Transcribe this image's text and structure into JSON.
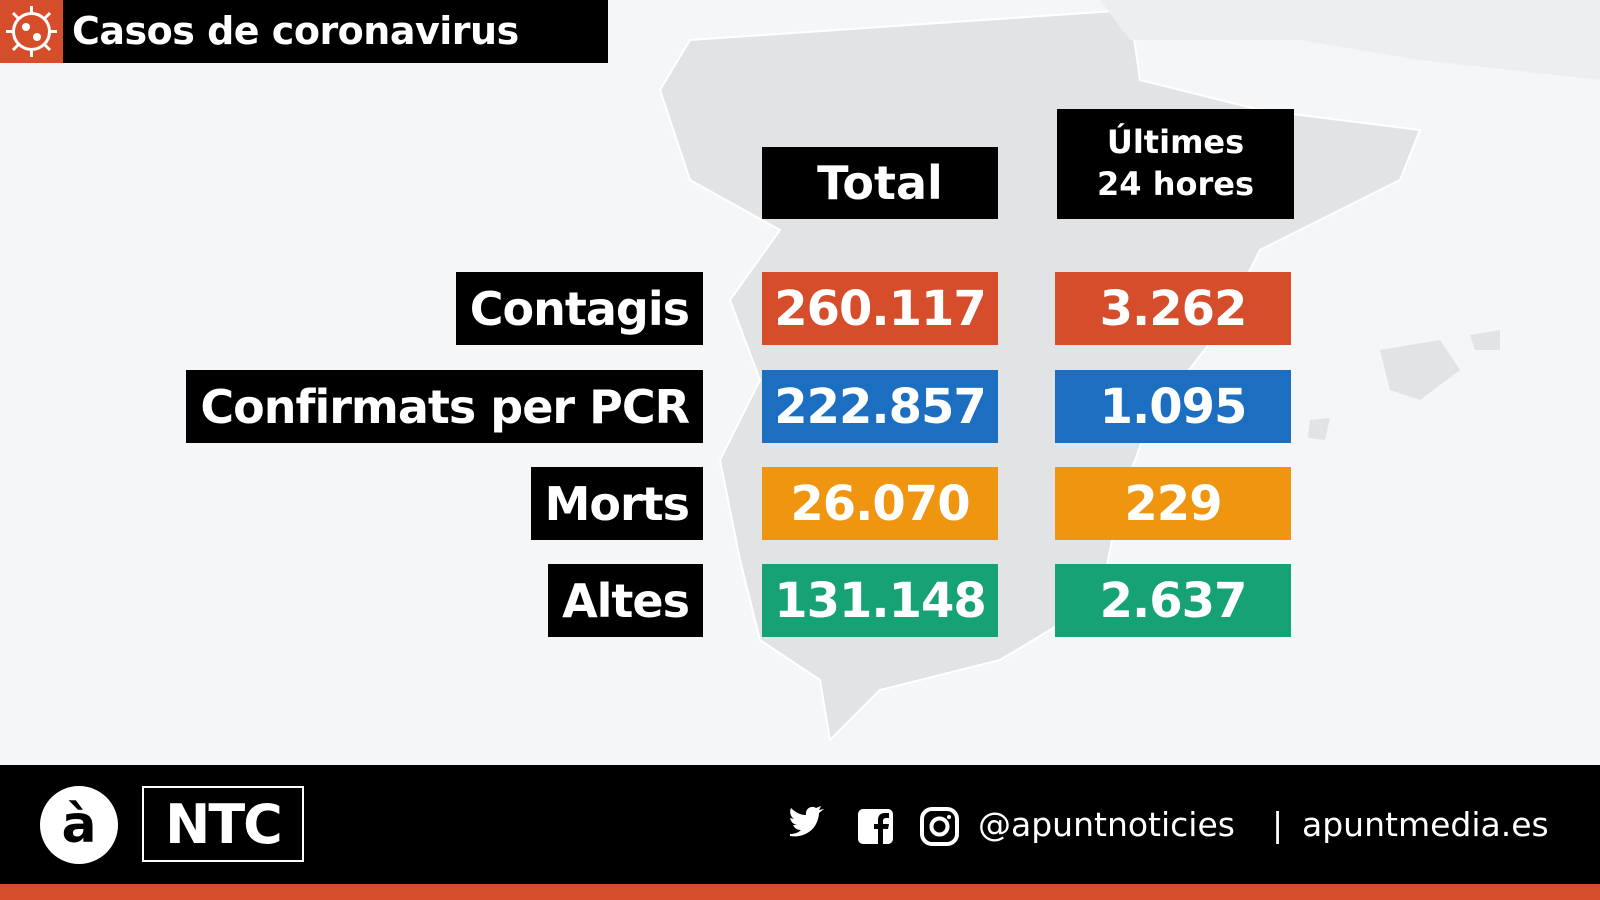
{
  "header": {
    "title": "Casos de coronavirus"
  },
  "table": {
    "columns": [
      "Total",
      "Últimes 24 hores"
    ],
    "rows": [
      {
        "label": "Contagis",
        "color": "#d54d2a",
        "values": [
          "260.117",
          "3.262"
        ]
      },
      {
        "label": "Confirmats per PCR",
        "color": "#1c6fc0",
        "values": [
          "222.857",
          "1.095"
        ]
      },
      {
        "label": "Morts",
        "color": "#f0950f",
        "values": [
          "26.070",
          "229"
        ]
      },
      {
        "label": "Altes",
        "color": "#17a276",
        "values": [
          "131.148",
          "2.637"
        ]
      }
    ]
  },
  "footer": {
    "logo_letter": "à",
    "brand": "NTC",
    "handle": "@apuntnoticies",
    "separator": "|",
    "website": "apuntmedia.es"
  }
}
